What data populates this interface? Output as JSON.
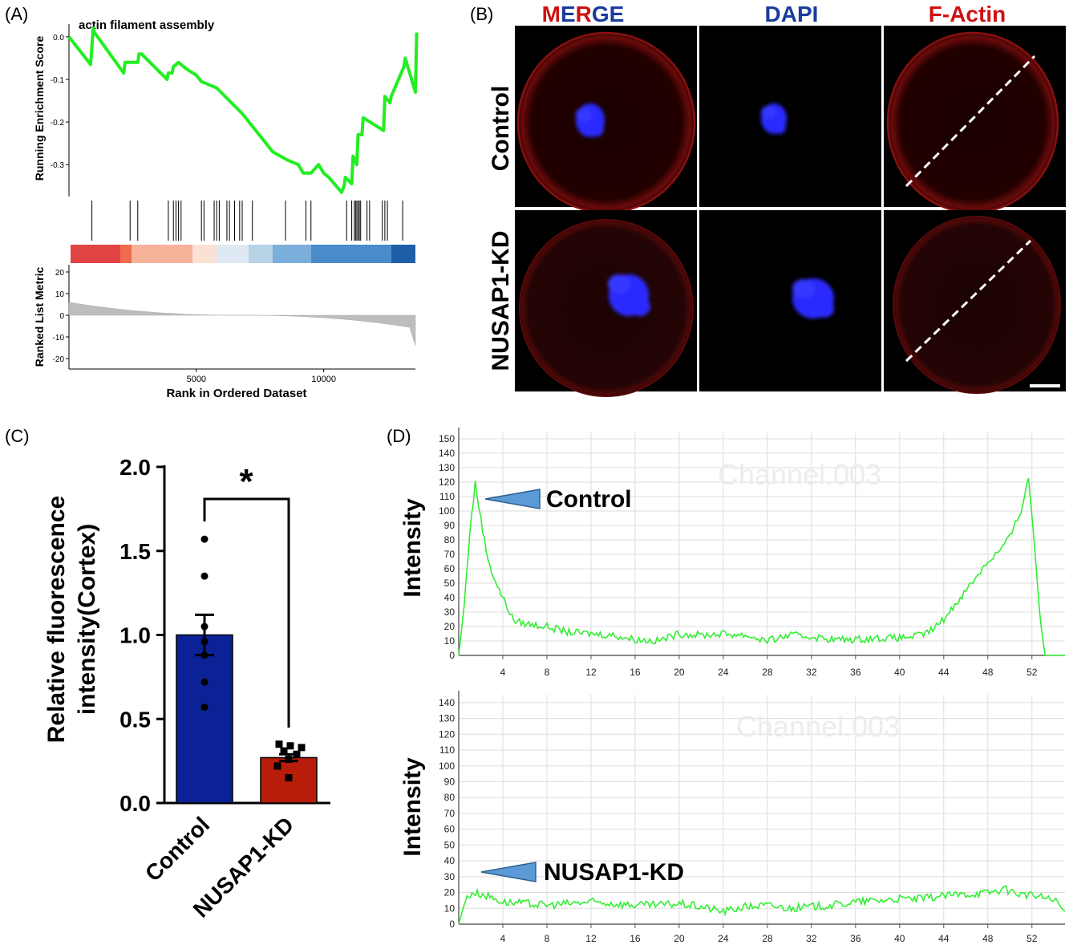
{
  "panels": {
    "A": "(A)",
    "B": "(B)",
    "C": "(C)",
    "D": "(D)"
  },
  "colors": {
    "gsea_line": "#22ee22",
    "bar_control": "#0b2196",
    "bar_kd": "#b81c0b",
    "profile_line": "#33ee33",
    "grid": "#dddddd",
    "merge_red": "#cc1111",
    "merge_blue": "#1a3c9c",
    "arrow_fill": "#5b9bd5"
  },
  "chart_data": [
    {
      "id": "A",
      "type": "line",
      "title": "actin filament assembly",
      "xlabel": "Rank in Ordered Dataset",
      "ylabel": "Running Enrichment Score",
      "ylabel_bottom": "Ranked List Metric",
      "xlim": [
        0,
        13600
      ],
      "ylim": [
        -0.375,
        0.03
      ],
      "x_ticks": [
        "5000",
        "10000"
      ],
      "x_tick_values": [
        5000,
        10000
      ],
      "y_ticks": [
        "0.0",
        "-0.1",
        "-0.2",
        "-0.3"
      ],
      "y_tick_values": [
        0.0,
        -0.1,
        -0.2,
        -0.3
      ],
      "metric_ticks": [
        "20",
        "10",
        "0",
        "-10",
        "-20"
      ],
      "metric_tick_values": [
        20,
        10,
        0,
        -10,
        -20
      ],
      "metric_ylim": [
        -25,
        25
      ],
      "series": [
        {
          "x": [
            0,
            850,
            950,
            1000,
            2150,
            2200,
            2700,
            2750,
            2850,
            3850,
            3900,
            4050,
            4100,
            4300,
            4600,
            5000,
            5200,
            5400,
            5600,
            5800,
            6300,
            6800,
            7200,
            7600,
            8000,
            8300,
            8600,
            9000,
            9200,
            9500,
            9800,
            10000,
            10200,
            10700,
            10800,
            10850,
            11100,
            11150,
            11300,
            11350,
            11500,
            11550,
            12350,
            12400,
            12600,
            12650,
            13150,
            13200,
            13600,
            13650
          ],
          "y": [
            0.0,
            -0.065,
            0.02,
            0.01,
            -0.085,
            -0.06,
            -0.06,
            -0.04,
            -0.04,
            -0.1,
            -0.085,
            -0.085,
            -0.07,
            -0.06,
            -0.075,
            -0.09,
            -0.105,
            -0.11,
            -0.115,
            -0.12,
            -0.15,
            -0.18,
            -0.21,
            -0.24,
            -0.27,
            -0.28,
            -0.29,
            -0.3,
            -0.32,
            -0.32,
            -0.3,
            -0.32,
            -0.33,
            -0.365,
            -0.35,
            -0.33,
            -0.345,
            -0.28,
            -0.3,
            -0.23,
            -0.23,
            -0.19,
            -0.22,
            -0.14,
            -0.155,
            -0.14,
            -0.07,
            -0.05,
            -0.13,
            0.01
          ]
        }
      ],
      "hit_ranks": [
        900,
        2400,
        2700,
        3900,
        4100,
        4200,
        4300,
        4400,
        5200,
        5300,
        5700,
        5800,
        5900,
        6200,
        6300,
        6500,
        6700,
        6800,
        7200,
        8500,
        9300,
        9500,
        10900,
        11100,
        11200,
        11250,
        11300,
        11350,
        11400,
        11450,
        11700,
        11800,
        12300,
        12400,
        12500,
        13100
      ]
    },
    {
      "id": "C",
      "type": "bar",
      "categories": [
        "Control",
        "NUSAP1-KD"
      ],
      "values": [
        1.0,
        0.27
      ],
      "error": [
        0.12,
        0.02
      ],
      "ylabel": "Relative fluorescence intensity(Cortex)",
      "ylim": [
        0,
        2.0
      ],
      "y_ticks": [
        "0.0",
        "0.5",
        "1.0",
        "1.5",
        "2.0"
      ],
      "y_tick_values": [
        0.0,
        0.5,
        1.0,
        1.5,
        2.0
      ],
      "significance": "*",
      "points": [
        [
          1.57,
          1.35,
          1.05,
          0.96,
          0.88,
          0.72,
          0.57
        ],
        [
          0.35,
          0.34,
          0.33,
          0.31,
          0.29,
          0.26,
          0.22,
          0.15
        ]
      ]
    },
    {
      "id": "D1",
      "type": "line",
      "ylabel": "Intensity",
      "watermark": "Channel.003",
      "annotation": "Control",
      "xlim": [
        0,
        55
      ],
      "ylim": [
        0,
        155
      ],
      "x_ticks": [
        "4",
        "8",
        "12",
        "16",
        "20",
        "24",
        "28",
        "32",
        "36",
        "40",
        "44",
        "48",
        "52"
      ],
      "x_tick_values": [
        4,
        8,
        12,
        16,
        20,
        24,
        28,
        32,
        36,
        40,
        44,
        48,
        52
      ],
      "y_ticks": [
        "0",
        "10",
        "20",
        "30",
        "40",
        "50",
        "60",
        "70",
        "80",
        "90",
        "100",
        "110",
        "120",
        "130",
        "140",
        "150"
      ],
      "y_tick_values": [
        0,
        10,
        20,
        30,
        40,
        50,
        60,
        70,
        80,
        90,
        100,
        110,
        120,
        130,
        140,
        150
      ],
      "series": [
        {
          "x": [
            0,
            0.5,
            1.0,
            1.5,
            2.0,
            2.5,
            3.0,
            3.5,
            4.0,
            4.5,
            5.0,
            6,
            8,
            10,
            12,
            14,
            16,
            18,
            20,
            22,
            24,
            26,
            28,
            30,
            32,
            34,
            36,
            38,
            40,
            42,
            43,
            44,
            45,
            46,
            47,
            48,
            49,
            50,
            51,
            51.7,
            52.2,
            52.7,
            53.2,
            55
          ],
          "y": [
            0,
            35,
            85,
            119,
            95,
            72,
            58,
            48,
            40,
            32,
            24,
            22,
            20,
            16,
            15,
            14,
            11,
            10,
            15,
            14,
            15,
            14,
            10,
            14,
            13,
            11,
            11,
            12,
            12,
            14,
            18,
            25,
            35,
            45,
            55,
            65,
            72,
            82,
            100,
            123,
            80,
            30,
            0,
            0
          ]
        }
      ]
    },
    {
      "id": "D2",
      "type": "line",
      "ylabel": "Intensity",
      "watermark": "Channel.003",
      "annotation": "NUSAP1-KD",
      "xlim": [
        0,
        55
      ],
      "ylim": [
        0,
        145
      ],
      "x_ticks": [
        "4",
        "8",
        "12",
        "16",
        "20",
        "24",
        "28",
        "32",
        "36",
        "40",
        "44",
        "48",
        "52"
      ],
      "x_tick_values": [
        4,
        8,
        12,
        16,
        20,
        24,
        28,
        32,
        36,
        40,
        44,
        48,
        52
      ],
      "y_ticks": [
        "0",
        "10",
        "20",
        "30",
        "40",
        "50",
        "60",
        "70",
        "80",
        "90",
        "100",
        "110",
        "120",
        "130",
        "140"
      ],
      "y_tick_values": [
        0,
        10,
        20,
        30,
        40,
        50,
        60,
        70,
        80,
        90,
        100,
        110,
        120,
        130,
        140
      ],
      "series": [
        {
          "x": [
            0,
            0.6,
            1.2,
            2,
            3,
            4,
            6,
            8,
            10,
            12,
            14,
            16,
            18,
            20,
            22,
            24,
            26,
            28,
            30,
            32,
            34,
            36,
            38,
            40,
            42,
            44,
            46,
            48,
            49.5,
            51,
            52,
            53,
            54,
            55
          ],
          "y": [
            0,
            15,
            20,
            19,
            17,
            14,
            13,
            12,
            13,
            14,
            13,
            12,
            12,
            13,
            11,
            8,
            11,
            12,
            10,
            11,
            12,
            14,
            15,
            16,
            16,
            18,
            19,
            20,
            22,
            19,
            18,
            17,
            15,
            8
          ]
        }
      ]
    }
  ],
  "images": {
    "columns": [
      "MERGE",
      "DAPI",
      "F-Actin"
    ],
    "merge_letters": [
      "M",
      "E",
      "R",
      "G",
      "E"
    ],
    "rows": [
      "Control",
      "NUSAP1-KD"
    ]
  }
}
